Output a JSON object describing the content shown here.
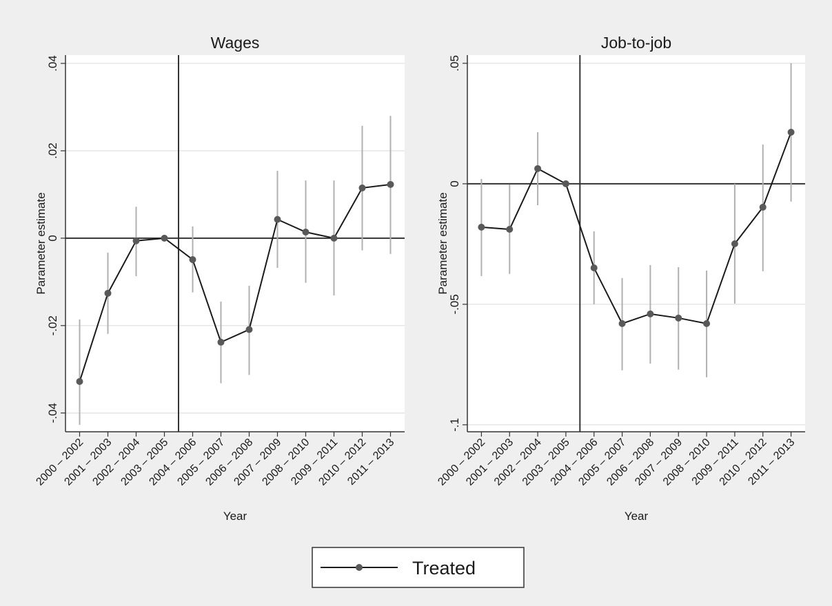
{
  "chart_data": [
    {
      "type": "line",
      "title": "Wages",
      "x_label": "Year",
      "y_label": "Parameter estimate",
      "categories": [
        "2000 – 2002",
        "2001 – 2003",
        "2002 – 2004",
        "2003 – 2005",
        "2004 – 2006",
        "2005 – 2007",
        "2006 – 2008",
        "2007 – 2009",
        "2008 – 2010",
        "2009 – 2011",
        "2010 – 2012",
        "2011 – 2013"
      ],
      "series": [
        {
          "name": "Treated",
          "color": "#1a1a1a",
          "marker_color": "#595959",
          "ci_color": "#b0b0b0",
          "values": [
            -0.0328,
            -0.0126,
            -0.0006,
            0,
            -0.0049,
            -0.0238,
            -0.0209,
            0.0043,
            0.0014,
            0,
            0.0115,
            0.0123
          ],
          "lower": [
            -0.0427,
            -0.0219,
            -0.0087,
            0,
            -0.0124,
            -0.0332,
            -0.0313,
            -0.0068,
            -0.0102,
            -0.0131,
            -0.0028,
            -0.0036
          ],
          "upper": [
            -0.0186,
            -0.0033,
            0.0072,
            0,
            0.0027,
            -0.0145,
            -0.0109,
            0.0154,
            0.0132,
            0.0132,
            0.0257,
            0.028
          ]
        }
      ],
      "ylim": [
        -0.0443,
        0.0419
      ],
      "yticks": [
        {
          "value": -0.04,
          "label": "-.04"
        },
        {
          "value": -0.02,
          "label": "-.02"
        },
        0,
        {
          "value": 0.02,
          "label": ".02"
        },
        {
          "value": 0.04,
          "label": ".04"
        }
      ],
      "grid": true,
      "yline": 0
    },
    {
      "type": "line",
      "title": "Job-to-job",
      "x_label": "Year",
      "y_label": "Parameter estimate",
      "categories": [
        "2000 – 2002",
        "2001 – 2003",
        "2002 – 2004",
        "2003 – 2005",
        "2004 – 2006",
        "2005 – 2007",
        "2006 – 2008",
        "2007 – 2009",
        "2008 – 2010",
        "2009 – 2011",
        "2010 – 2012",
        "2011 – 2013"
      ],
      "series": [
        {
          "color": "#1a1a1a",
          "marker_color": "#595959",
          "ci_color": "#b0b0b0",
          "values": [
            -0.018,
            -0.0189,
            0.0063,
            0,
            -0.0349,
            -0.058,
            -0.054,
            -0.0557,
            -0.058,
            -0.0249,
            -0.0097,
            0.0214
          ],
          "lower": [
            -0.0383,
            -0.0374,
            -0.0089,
            0,
            -0.05,
            -0.0774,
            -0.0746,
            -0.0771,
            -0.0803,
            -0.0497,
            -0.0363,
            -0.0074
          ],
          "upper": [
            0.002,
            -0.0003,
            0.0214,
            0,
            -0.0197,
            -0.0391,
            -0.0337,
            -0.0346,
            -0.036,
            0,
            0.0163,
            0.05
          ]
        }
      ],
      "ylim": [
        -0.1029,
        0.0534
      ],
      "yticks": [
        {
          "value": -0.1,
          "label": "-.1"
        },
        {
          "value": -0.05,
          "label": "-.05"
        },
        0,
        {
          "value": 0.05,
          "label": ".05"
        }
      ],
      "grid": true,
      "yline": 0
    }
  ]
}
